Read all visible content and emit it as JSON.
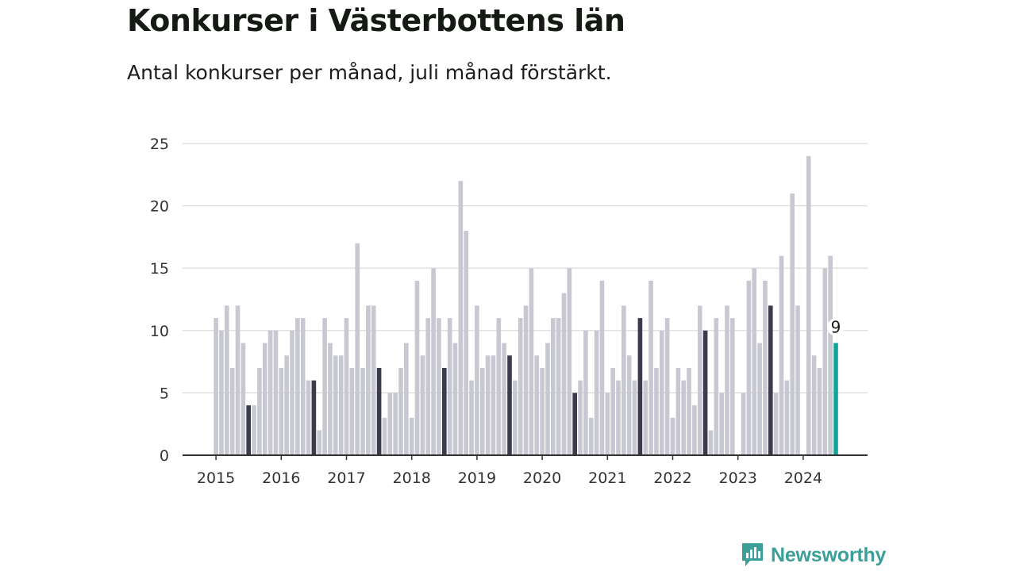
{
  "chart_data": {
    "type": "bar",
    "title": "Konkurser i Västerbottens län",
    "subtitle": "Antal konkurser per månad, juli månad förstärkt.",
    "xlabel": "",
    "ylabel": "",
    "ylim": [
      0,
      25
    ],
    "yticks": [
      "0",
      "5",
      "10",
      "15",
      "20",
      "25"
    ],
    "xticks": [
      "2015",
      "2016",
      "2017",
      "2018",
      "2019",
      "2020",
      "2021",
      "2022",
      "2023",
      "2024"
    ],
    "grid": true,
    "highlight_month": "juli",
    "start": "2015-01",
    "values": [
      11,
      10,
      12,
      7,
      12,
      9,
      4,
      4,
      7,
      9,
      10,
      10,
      7,
      8,
      10,
      11,
      11,
      6,
      6,
      2,
      11,
      9,
      8,
      8,
      11,
      7,
      17,
      7,
      12,
      12,
      7,
      3,
      5,
      5,
      7,
      9,
      3,
      14,
      8,
      11,
      15,
      11,
      7,
      11,
      9,
      22,
      18,
      6,
      12,
      7,
      8,
      8,
      11,
      9,
      8,
      6,
      11,
      12,
      15,
      8,
      7,
      9,
      11,
      11,
      13,
      15,
      5,
      6,
      10,
      3,
      10,
      14,
      5,
      7,
      6,
      12,
      8,
      6,
      11,
      6,
      14,
      7,
      10,
      11,
      3,
      7,
      6,
      7,
      4,
      12,
      10,
      2,
      11,
      5,
      12,
      11,
      0,
      5,
      14,
      15,
      9,
      14,
      12,
      5,
      16,
      6,
      21,
      12,
      0,
      24,
      8,
      7,
      15,
      16,
      9
    ],
    "last_value_label": "9",
    "colors": {
      "bar": "#c8c8d2",
      "july": "#3b3b4d",
      "latest": "#14a39a",
      "grid": "#d9d9d9",
      "axis": "#333333",
      "tick_text": "#333333"
    }
  },
  "branding": {
    "logo_text": "Newsworthy",
    "logo_color": "#3b9f97"
  }
}
